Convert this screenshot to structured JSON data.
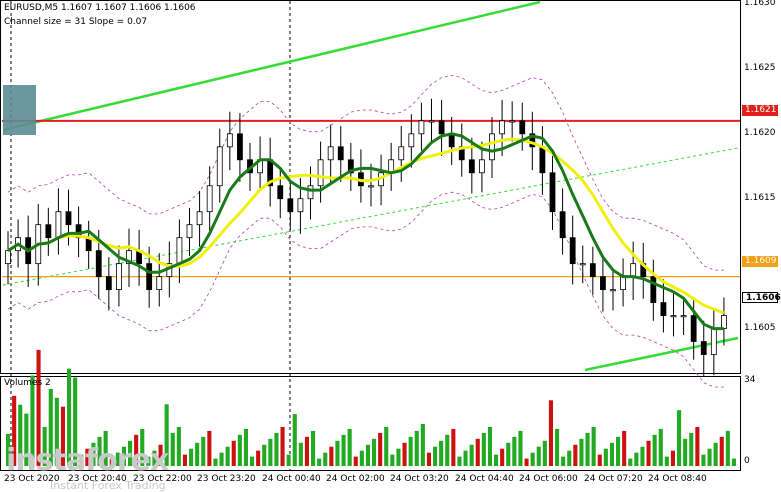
{
  "header": {
    "line1": "EURUSD,M5  1.1607 1.1607 1.1606 1.1606",
    "line2": "Channel size = 31 Slope = 0.07"
  },
  "volume_header": "Volumes 2",
  "watermark": {
    "brand": "instaforex",
    "tagline": "Instant Forex Trading"
  },
  "price_boxes": {
    "red": "1.1621",
    "orange": "1.1609",
    "current": "1.1606"
  },
  "colors": {
    "candles": "#000000",
    "ma_fast": "#1a7a1a",
    "ma_slow": "#f0f010",
    "channel_upper": "#33dd33",
    "resistance": "#e0201a",
    "support": "#f0a010",
    "volume_bars": "#22aa22",
    "volume_bars_down": "#cc1111",
    "bollinger": "#b040b0"
  },
  "chart_data": {
    "type": "candlestick",
    "symbol": "EURUSD",
    "timeframe": "M5",
    "y_axis_labels": [
      "1.1630",
      "1.1625",
      "1.1620",
      "1.1615",
      "1.1610",
      "1.1605"
    ],
    "ylim": [
      1.16015,
      1.163
    ],
    "x_tick_labels": [
      "23 Oct 2020",
      "23 Oct 20:40",
      "23 Oct 22:00",
      "23 Oct 23:20",
      "24 Oct 00:40",
      "24 Oct 02:00",
      "24 Oct 03:20",
      "24 Oct 04:40",
      "24 Oct 06:00",
      "24 Oct 07:20",
      "24 Oct 08:40"
    ],
    "horizontal_levels": [
      {
        "name": "resistance",
        "value": 1.1621
      },
      {
        "name": "support",
        "value": 1.1609
      }
    ],
    "volume_axis_labels": [
      "34",
      "0"
    ],
    "closes": [
      1.1611,
      1.1612,
      1.161,
      1.1613,
      1.1612,
      1.1614,
      1.1613,
      1.1612,
      1.1611,
      1.1609,
      1.1608,
      1.161,
      1.1611,
      1.161,
      1.1608,
      1.1609,
      1.161,
      1.1612,
      1.1613,
      1.1614,
      1.1616,
      1.1619,
      1.162,
      1.1618,
      1.1617,
      1.1618,
      1.1616,
      1.1615,
      1.1614,
      1.1615,
      1.1616,
      1.1618,
      1.1619,
      1.1618,
      1.1617,
      1.1616,
      1.1616,
      1.1617,
      1.1618,
      1.1619,
      1.162,
      1.1621,
      1.1621,
      1.162,
      1.1619,
      1.1618,
      1.1617,
      1.1618,
      1.162,
      1.1621,
      1.1621,
      1.162,
      1.1619,
      1.1617,
      1.1614,
      1.1612,
      1.161,
      1.161,
      1.1609,
      1.1608,
      1.1608,
      1.1609,
      1.161,
      1.1609,
      1.1607,
      1.1606,
      1.1606,
      1.1606,
      1.1604,
      1.1603,
      1.1605,
      1.1606
    ],
    "volume_max": 34
  }
}
